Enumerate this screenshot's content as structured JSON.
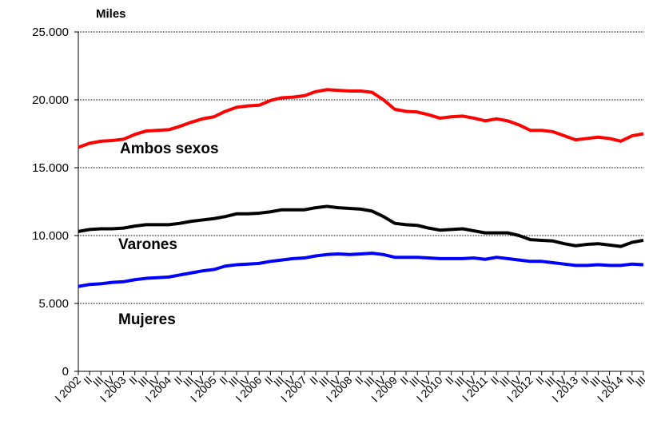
{
  "chart_data": {
    "type": "line",
    "ylabel": "Miles",
    "categories": [
      "I 2002",
      "II",
      "III",
      "IV",
      "I 2003",
      "II",
      "III",
      "IV",
      "I 2004",
      "II",
      "III",
      "IV",
      "I 2005",
      "II",
      "III",
      "IV",
      "I 2006",
      "II",
      "III",
      "IV",
      "I 2007",
      "II",
      "III",
      "IV",
      "I 2008",
      "II",
      "III",
      "IV",
      "I 2009",
      "II",
      "III",
      "IV",
      "I 2010",
      "II",
      "III",
      "IV",
      "I 2011",
      "II",
      "III",
      "IV",
      "I 2012",
      "II",
      "III",
      "IV",
      "I 2013",
      "II",
      "III",
      "IV",
      "I 2014",
      "II",
      "III"
    ],
    "series": [
      {
        "name": "Ambos sexos",
        "color": "#ff0000",
        "values": [
          16500,
          16800,
          16950,
          17000,
          17100,
          17450,
          17700,
          17750,
          17800,
          18050,
          18350,
          18600,
          18750,
          19150,
          19450,
          19550,
          19600,
          19950,
          20150,
          20200,
          20300,
          20600,
          20750,
          20700,
          20650,
          20650,
          20550,
          20000,
          19300,
          19150,
          19100,
          18900,
          18650,
          18750,
          18800,
          18650,
          18450,
          18600,
          18450,
          18150,
          17750,
          17750,
          17650,
          17350,
          17050,
          17150,
          17250,
          17150,
          16950,
          17350,
          17500
        ]
      },
      {
        "name": "Varones",
        "color": "#000000",
        "values": [
          10300,
          10450,
          10500,
          10500,
          10550,
          10700,
          10800,
          10800,
          10800,
          10900,
          11050,
          11150,
          11250,
          11400,
          11600,
          11600,
          11650,
          11750,
          11900,
          11900,
          11900,
          12050,
          12150,
          12050,
          12000,
          11950,
          11800,
          11400,
          10900,
          10800,
          10750,
          10550,
          10400,
          10450,
          10500,
          10350,
          10200,
          10200,
          10200,
          10000,
          9700,
          9650,
          9600,
          9400,
          9250,
          9350,
          9400,
          9300,
          9200,
          9500,
          9650
        ]
      },
      {
        "name": "Mujeres",
        "color": "#0000ff",
        "values": [
          6250,
          6400,
          6450,
          6550,
          6600,
          6750,
          6850,
          6900,
          6950,
          7100,
          7250,
          7400,
          7500,
          7750,
          7850,
          7900,
          7950,
          8100,
          8200,
          8300,
          8350,
          8500,
          8600,
          8650,
          8600,
          8650,
          8700,
          8600,
          8400,
          8400,
          8400,
          8350,
          8300,
          8300,
          8300,
          8350,
          8250,
          8400,
          8300,
          8200,
          8100,
          8100,
          8000,
          7900,
          7800,
          7800,
          7850,
          7800,
          7800,
          7900,
          7850
        ]
      }
    ],
    "ylim": [
      0,
      25000
    ],
    "yticks": [
      0,
      {
        "value": 5000,
        "label": "5.000"
      },
      {
        "value": 10000,
        "label": "10.000"
      },
      {
        "value": 15000,
        "label": "15.000"
      },
      {
        "value": 20000,
        "label": "20.000"
      },
      {
        "value": 25000,
        "label": "25.000"
      }
    ],
    "grid": true
  }
}
